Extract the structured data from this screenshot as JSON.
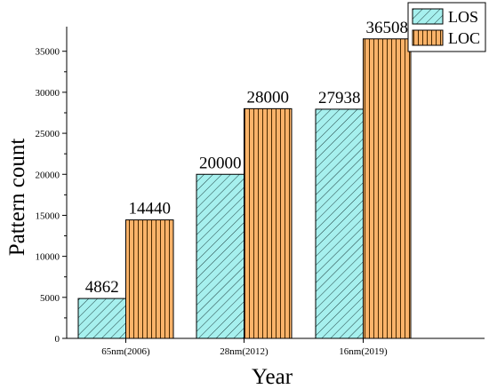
{
  "chart_data": {
    "type": "bar",
    "categories": [
      "65nm(2006)",
      "28nm(2012)",
      "16nm(2019)"
    ],
    "series": [
      {
        "name": "LOS",
        "values": [
          4862,
          20000,
          27938
        ],
        "fill": "#a6f0ee",
        "hatch": "diagonal"
      },
      {
        "name": "LOC",
        "values": [
          14440,
          28000,
          36508
        ],
        "fill": "#fbb36a",
        "hatch": "vertical"
      }
    ],
    "xlabel": "Year",
    "ylabel": "Pattern count",
    "ylim": [
      0,
      38000
    ],
    "yticks": [
      0,
      5000,
      10000,
      15000,
      20000,
      25000,
      30000,
      35000
    ],
    "data_labels": true,
    "legend": "top-right",
    "grid": false
  }
}
